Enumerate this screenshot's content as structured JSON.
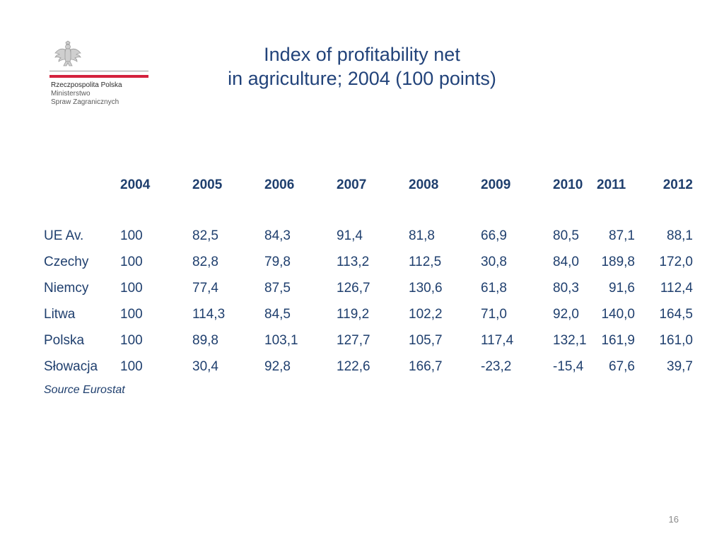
{
  "logo": {
    "line1": "Rzeczpospolita Polska",
    "line2": "Ministerstwo",
    "line3": "Spraw Zagranicznych"
  },
  "title": {
    "line1": "Index of profitability net",
    "line2": "in agriculture; 2004 (100 points)"
  },
  "table": {
    "headers": [
      "",
      "2004",
      "2005",
      "2006",
      "2007",
      "2008",
      "2009",
      "2010",
      "2011",
      "2012"
    ],
    "rows": [
      {
        "label": "UE Av.",
        "values": [
          "100",
          "82,5",
          "84,3",
          "91,4",
          "81,8",
          "66,9",
          "80,5",
          "87,1",
          "88,1"
        ]
      },
      {
        "label": "Czechy",
        "values": [
          "100",
          "82,8",
          "79,8",
          "113,2",
          "112,5",
          "30,8",
          "84,0",
          "189,8",
          "172,0"
        ]
      },
      {
        "label": "Niemcy",
        "values": [
          "100",
          "77,4",
          "87,5",
          "126,7",
          "130,6",
          "61,8",
          "80,3",
          "91,6",
          "112,4"
        ]
      },
      {
        "label": "Litwa",
        "values": [
          "100",
          "114,3",
          "84,5",
          "119,2",
          "102,2",
          "71,0",
          "92,0",
          "140,0",
          "164,5"
        ]
      },
      {
        "label": "Polska",
        "values": [
          "100",
          "89,8",
          "103,1",
          "127,7",
          "105,7",
          "117,4",
          "132,1",
          "161,9",
          "161,0"
        ]
      },
      {
        "label": "Słowacja",
        "values": [
          "100",
          "30,4",
          "92,8",
          "122,6",
          "166,7",
          "-23,2",
          "-15,4",
          "67,6",
          "39,7"
        ]
      }
    ]
  },
  "source": "Source Eurostat",
  "page_number": "16"
}
